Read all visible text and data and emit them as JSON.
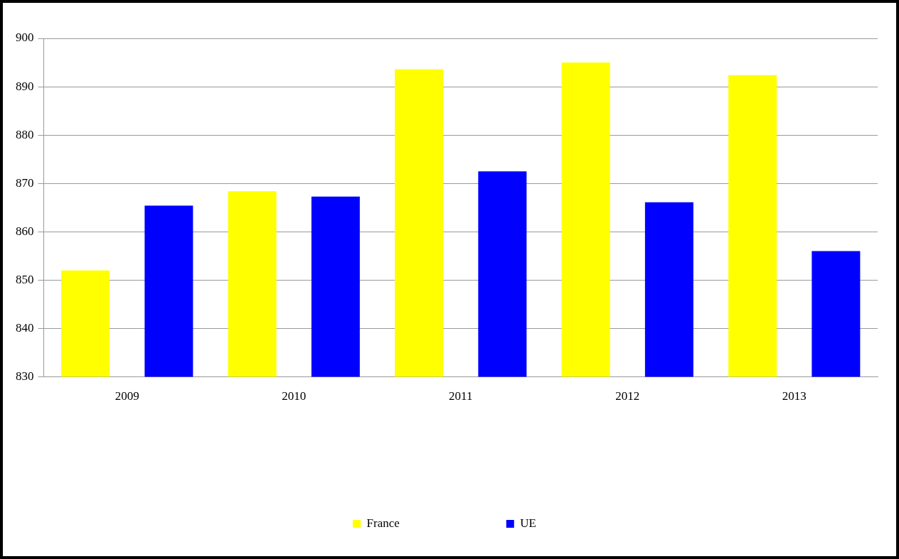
{
  "chart_data": {
    "type": "bar",
    "categories": [
      "2009",
      "2010",
      "2011",
      "2012",
      "2013"
    ],
    "series": [
      {
        "name": "France",
        "color": "#ffff00",
        "values": [
          852.0,
          868.4,
          893.6,
          895.0,
          892.4
        ]
      },
      {
        "name": "UE",
        "color": "#0000ff",
        "values": [
          865.4,
          867.3,
          872.5,
          866.1,
          856.0
        ]
      }
    ],
    "ylim": [
      830,
      900
    ],
    "yticks": [
      830,
      840,
      850,
      860,
      870,
      880,
      890,
      900
    ],
    "grid": "y",
    "legend": "bottom"
  }
}
